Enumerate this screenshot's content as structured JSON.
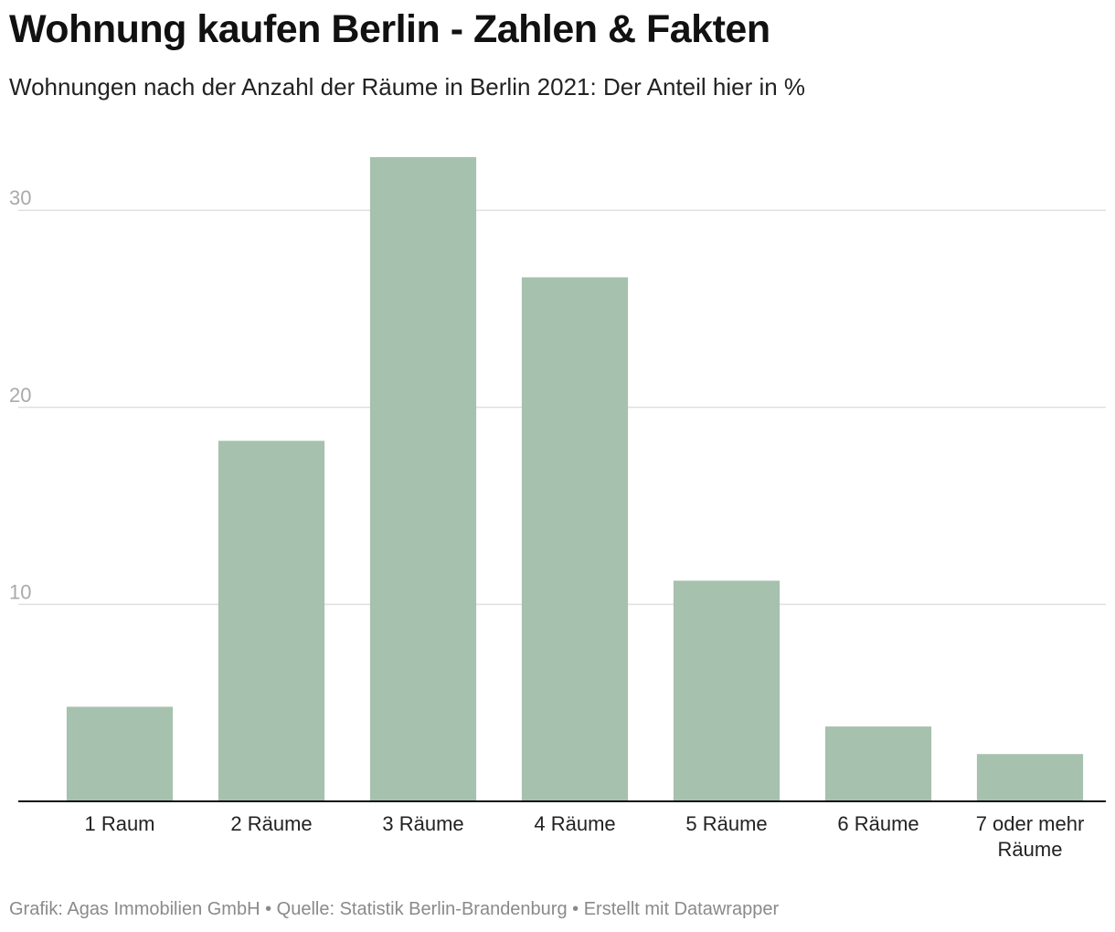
{
  "header": {
    "title": "Wohnung kaufen Berlin - Zahlen & Fakten",
    "subtitle": "Wohnungen nach der Anzahl der Räume in Berlin 2021: Der Anteil hier in %"
  },
  "footer": {
    "credit": "Grafik: Agas Immobilien GmbH • Quelle: Statistik Berlin-Brandenburg • Erstellt mit Datawrapper"
  },
  "colors": {
    "bar": "#a6c1ae",
    "grid": "#e0e0e0",
    "axis": "#111111",
    "tick_text": "#aaaaaa",
    "label_text": "#222222"
  },
  "chart_data": {
    "type": "bar",
    "title": "Wohnung kaufen Berlin - Zahlen & Fakten",
    "subtitle": "Wohnungen nach der Anzahl der Räume in Berlin 2021: Der Anteil hier in %",
    "categories": [
      [
        "1 Raum"
      ],
      [
        "2 Räume"
      ],
      [
        "3 Räume"
      ],
      [
        "4 Räume"
      ],
      [
        "5 Räume"
      ],
      [
        "6 Räume"
      ],
      [
        "7 oder mehr",
        "Räume"
      ]
    ],
    "values": [
      4.8,
      18.3,
      32.7,
      26.6,
      11.2,
      3.8,
      2.4
    ],
    "ylim": [
      0,
      32.7
    ],
    "yticks": [
      10,
      20,
      30
    ],
    "grid": true,
    "legend": "none",
    "xlabel": "",
    "ylabel": ""
  }
}
